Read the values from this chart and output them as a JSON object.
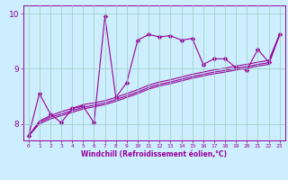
{
  "xlabel": "Windchill (Refroidissement éolien,°C)",
  "bg_color": "#cceeff",
  "line_color": "#990099",
  "grid_color": "#99ccbb",
  "x_ticks": [
    0,
    1,
    2,
    3,
    4,
    5,
    6,
    7,
    8,
    9,
    10,
    11,
    12,
    13,
    14,
    15,
    16,
    17,
    18,
    19,
    20,
    21,
    22,
    23
  ],
  "y_ticks": [
    8,
    9,
    10
  ],
  "xlim": [
    -0.5,
    23.5
  ],
  "ylim": [
    7.7,
    10.15
  ],
  "lines": [
    {
      "x": [
        0,
        1,
        2,
        3,
        4,
        5,
        6,
        7,
        8,
        9,
        10,
        11,
        12,
        13,
        14,
        15,
        16,
        17,
        18,
        19,
        20,
        21,
        22,
        23
      ],
      "y": [
        7.78,
        8.55,
        8.18,
        8.02,
        8.28,
        8.32,
        8.02,
        9.95,
        8.48,
        8.75,
        9.52,
        9.62,
        9.58,
        9.6,
        9.52,
        9.55,
        9.08,
        9.18,
        9.18,
        9.02,
        8.98,
        9.35,
        9.12,
        9.62
      ],
      "marker": true
    },
    {
      "x": [
        0,
        1,
        2,
        3,
        4,
        5,
        6,
        7,
        8,
        9,
        10,
        11,
        12,
        13,
        14,
        15,
        16,
        17,
        18,
        19,
        20,
        21,
        22,
        23
      ],
      "y": [
        7.78,
        8.05,
        8.15,
        8.22,
        8.28,
        8.35,
        8.38,
        8.42,
        8.48,
        8.55,
        8.62,
        8.7,
        8.76,
        8.8,
        8.85,
        8.9,
        8.94,
        8.98,
        9.01,
        9.05,
        9.08,
        9.12,
        9.15,
        9.62
      ],
      "marker": false
    },
    {
      "x": [
        0,
        1,
        2,
        3,
        4,
        5,
        6,
        7,
        8,
        9,
        10,
        11,
        12,
        13,
        14,
        15,
        16,
        17,
        18,
        19,
        20,
        21,
        22,
        23
      ],
      "y": [
        7.78,
        8.03,
        8.12,
        8.18,
        8.24,
        8.3,
        8.34,
        8.38,
        8.44,
        8.51,
        8.58,
        8.66,
        8.72,
        8.76,
        8.81,
        8.86,
        8.9,
        8.94,
        8.97,
        9.01,
        9.04,
        9.08,
        9.11,
        9.62
      ],
      "marker": false
    },
    {
      "x": [
        0,
        1,
        2,
        3,
        4,
        5,
        6,
        7,
        8,
        9,
        10,
        11,
        12,
        13,
        14,
        15,
        16,
        17,
        18,
        19,
        20,
        21,
        22,
        23
      ],
      "y": [
        7.78,
        8.0,
        8.09,
        8.15,
        8.21,
        8.27,
        8.31,
        8.35,
        8.41,
        8.48,
        8.55,
        8.63,
        8.69,
        8.73,
        8.78,
        8.83,
        8.87,
        8.91,
        8.94,
        8.98,
        9.01,
        9.05,
        9.08,
        9.62
      ],
      "marker": false
    }
  ]
}
